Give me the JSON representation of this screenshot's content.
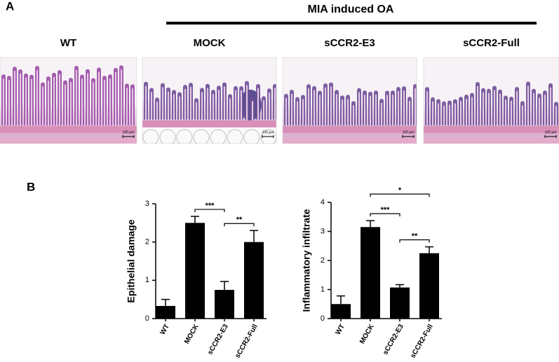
{
  "panel_labels": [
    "A",
    "B"
  ],
  "figure_a": {
    "group_label": "MIA induced OA",
    "images": [
      {
        "label": "WT",
        "scale_bar": "100 µm"
      },
      {
        "label": "MOCK",
        "scale_bar": "100 µm"
      },
      {
        "label": "sCCR2-E3",
        "scale_bar": "100 µm"
      },
      {
        "label": "sCCR2-Full",
        "scale_bar": "100 µm"
      }
    ]
  },
  "chart_data": [
    {
      "type": "bar",
      "y_label": "Epithelial damage",
      "categories": [
        "WT",
        "MOCK",
        "sCCR2-E3",
        "sCCR2-Full"
      ],
      "values": [
        0.33,
        2.5,
        0.75,
        2.0
      ],
      "error": [
        0.17,
        0.17,
        0.22,
        0.3
      ],
      "color": "#000000",
      "ylim": [
        0,
        3
      ],
      "yticks": [
        0,
        1,
        2,
        3
      ],
      "annotations": [
        {
          "text": "***",
          "span": [
            "MOCK",
            "sCCR2-E3"
          ]
        },
        {
          "text": "**",
          "span": [
            "sCCR2-E3",
            "sCCR2-Full"
          ]
        }
      ]
    },
    {
      "type": "bar",
      "y_label": "Inflammatory infiltrate",
      "categories": [
        "WT",
        "MOCK",
        "sCCR2-E3",
        "sCCR2-Full"
      ],
      "values": [
        0.5,
        3.15,
        1.07,
        2.25
      ],
      "error": [
        0.28,
        0.22,
        0.1,
        0.22
      ],
      "color": "#000000",
      "ylim": [
        0,
        4
      ],
      "yticks": [
        0,
        1,
        2,
        3,
        4
      ],
      "annotations": [
        {
          "text": "*",
          "span": [
            "MOCK",
            "sCCR2-Full"
          ]
        },
        {
          "text": "***",
          "span": [
            "MOCK",
            "sCCR2-E3"
          ]
        },
        {
          "text": "**",
          "span": [
            "sCCR2-E3",
            "sCCR2-Full"
          ]
        }
      ]
    }
  ]
}
